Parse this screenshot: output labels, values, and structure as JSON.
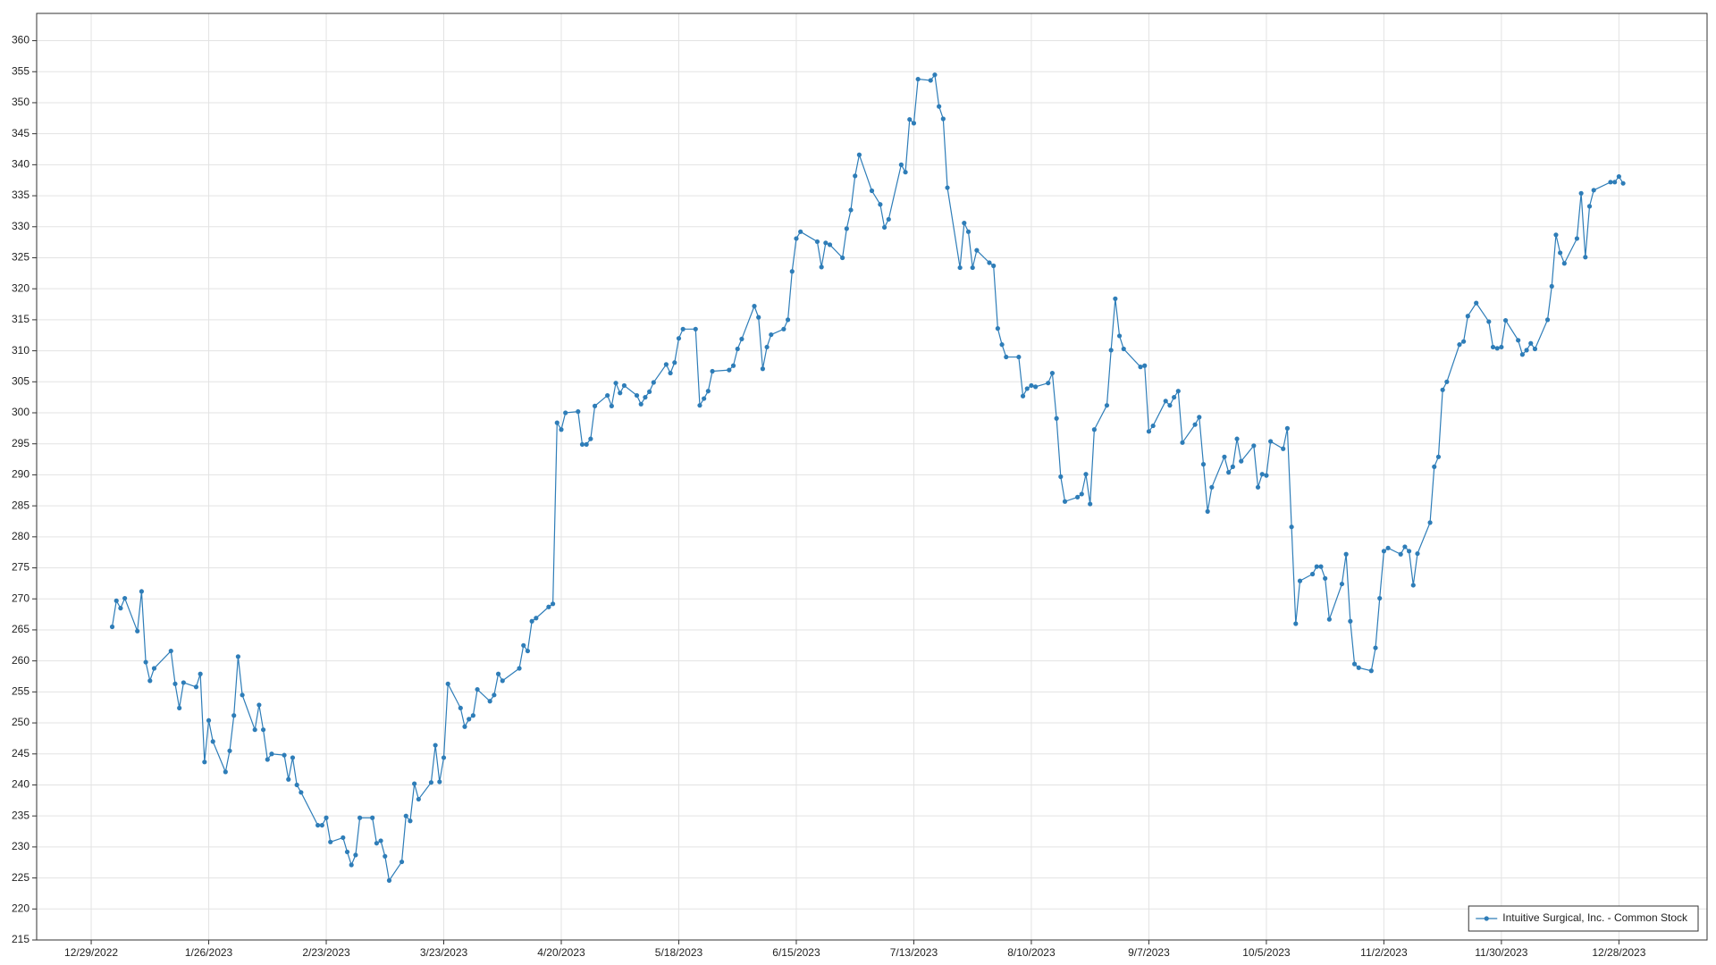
{
  "chart_data": {
    "type": "line",
    "xlim": [
      "12/16/2022",
      "1/18/2024"
    ],
    "xticks": [
      "12/29/2022",
      "1/26/2023",
      "2/23/2023",
      "3/23/2023",
      "4/20/2023",
      "5/18/2023",
      "6/15/2023",
      "7/13/2023",
      "8/10/2023",
      "9/7/2023",
      "10/5/2023",
      "11/2/2023",
      "11/30/2023",
      "12/28/2023"
    ],
    "ylim": [
      215,
      364.4
    ],
    "yticks": [
      215,
      220,
      225,
      230,
      235,
      240,
      245,
      250,
      255,
      260,
      265,
      270,
      275,
      280,
      285,
      290,
      295,
      300,
      305,
      310,
      315,
      320,
      325,
      330,
      335,
      340,
      345,
      350,
      355,
      360
    ],
    "grid": true,
    "legend": "lower right",
    "series": [
      {
        "name": "Intuitive Surgical, Inc. - Common Stock",
        "color": "#2e7db8",
        "x": [
          "1/3/2023",
          "1/4/2023",
          "1/5/2023",
          "1/6/2023",
          "1/9/2023",
          "1/10/2023",
          "1/11/2023",
          "1/12/2023",
          "1/13/2023",
          "1/17/2023",
          "1/18/2023",
          "1/19/2023",
          "1/20/2023",
          "1/23/2023",
          "1/24/2023",
          "1/25/2023",
          "1/26/2023",
          "1/27/2023",
          "1/30/2023",
          "1/31/2023",
          "2/1/2023",
          "2/2/2023",
          "2/3/2023",
          "2/6/2023",
          "2/7/2023",
          "2/8/2023",
          "2/9/2023",
          "2/10/2023",
          "2/13/2023",
          "2/14/2023",
          "2/15/2023",
          "2/16/2023",
          "2/17/2023",
          "2/21/2023",
          "2/22/2023",
          "2/23/2023",
          "2/24/2023",
          "2/27/2023",
          "2/28/2023",
          "3/1/2023",
          "3/2/2023",
          "3/3/2023",
          "3/6/2023",
          "3/7/2023",
          "3/8/2023",
          "3/9/2023",
          "3/10/2023",
          "3/13/2023",
          "3/14/2023",
          "3/15/2023",
          "3/16/2023",
          "3/17/2023",
          "3/20/2023",
          "3/21/2023",
          "3/22/2023",
          "3/23/2023",
          "3/24/2023",
          "3/27/2023",
          "3/28/2023",
          "3/29/2023",
          "3/30/2023",
          "3/31/2023",
          "4/3/2023",
          "4/4/2023",
          "4/5/2023",
          "4/6/2023",
          "4/10/2023",
          "4/11/2023",
          "4/12/2023",
          "4/13/2023",
          "4/14/2023",
          "4/17/2023",
          "4/18/2023",
          "4/19/2023",
          "4/20/2023",
          "4/21/2023",
          "4/24/2023",
          "4/25/2023",
          "4/26/2023",
          "4/27/2023",
          "4/28/2023",
          "5/1/2023",
          "5/2/2023",
          "5/3/2023",
          "5/4/2023",
          "5/5/2023",
          "5/8/2023",
          "5/9/2023",
          "5/10/2023",
          "5/11/2023",
          "5/12/2023",
          "5/15/2023",
          "5/16/2023",
          "5/17/2023",
          "5/18/2023",
          "5/19/2023",
          "5/22/2023",
          "5/23/2023",
          "5/24/2023",
          "5/25/2023",
          "5/26/2023",
          "5/30/2023",
          "5/31/2023",
          "6/1/2023",
          "6/2/2023",
          "6/5/2023",
          "6/6/2023",
          "6/7/2023",
          "6/8/2023",
          "6/9/2023",
          "6/12/2023",
          "6/13/2023",
          "6/14/2023",
          "6/15/2023",
          "6/16/2023",
          "6/20/2023",
          "6/21/2023",
          "6/22/2023",
          "6/23/2023",
          "6/26/2023",
          "6/27/2023",
          "6/28/2023",
          "6/29/2023",
          "6/30/2023",
          "7/3/2023",
          "7/5/2023",
          "7/6/2023",
          "7/7/2023",
          "7/10/2023",
          "7/11/2023",
          "7/12/2023",
          "7/13/2023",
          "7/14/2023",
          "7/17/2023",
          "7/18/2023",
          "7/19/2023",
          "7/20/2023",
          "7/21/2023",
          "7/24/2023",
          "7/25/2023",
          "7/26/2023",
          "7/27/2023",
          "7/28/2023",
          "7/31/2023",
          "8/1/2023",
          "8/2/2023",
          "8/3/2023",
          "8/4/2023",
          "8/7/2023",
          "8/8/2023",
          "8/9/2023",
          "8/10/2023",
          "8/11/2023",
          "8/14/2023",
          "8/15/2023",
          "8/16/2023",
          "8/17/2023",
          "8/18/2023",
          "8/21/2023",
          "8/22/2023",
          "8/23/2023",
          "8/24/2023",
          "8/25/2023",
          "8/28/2023",
          "8/29/2023",
          "8/30/2023",
          "8/31/2023",
          "9/1/2023",
          "9/5/2023",
          "9/6/2023",
          "9/7/2023",
          "9/8/2023",
          "9/11/2023",
          "9/12/2023",
          "9/13/2023",
          "9/14/2023",
          "9/15/2023",
          "9/18/2023",
          "9/19/2023",
          "9/20/2023",
          "9/21/2023",
          "9/22/2023",
          "9/25/2023",
          "9/26/2023",
          "9/27/2023",
          "9/28/2023",
          "9/29/2023",
          "10/2/2023",
          "10/3/2023",
          "10/4/2023",
          "10/5/2023",
          "10/6/2023",
          "10/9/2023",
          "10/10/2023",
          "10/11/2023",
          "10/12/2023",
          "10/13/2023",
          "10/16/2023",
          "10/17/2023",
          "10/18/2023",
          "10/19/2023",
          "10/20/2023",
          "10/23/2023",
          "10/24/2023",
          "10/25/2023",
          "10/26/2023",
          "10/27/2023",
          "10/30/2023",
          "10/31/2023",
          "11/1/2023",
          "11/2/2023",
          "11/3/2023",
          "11/6/2023",
          "11/7/2023",
          "11/8/2023",
          "11/9/2023",
          "11/10/2023",
          "11/13/2023",
          "11/14/2023",
          "11/15/2023",
          "11/16/2023",
          "11/17/2023",
          "11/20/2023",
          "11/21/2023",
          "11/22/2023",
          "11/24/2023",
          "11/27/2023",
          "11/28/2023",
          "11/29/2023",
          "11/30/2023",
          "12/1/2023",
          "12/4/2023",
          "12/5/2023",
          "12/6/2023",
          "12/7/2023",
          "12/8/2023",
          "12/11/2023",
          "12/12/2023",
          "12/13/2023",
          "12/14/2023",
          "12/15/2023",
          "12/18/2023",
          "12/19/2023",
          "12/20/2023",
          "12/21/2023",
          "12/22/2023",
          "12/26/2023",
          "12/27/2023",
          "12/28/2023",
          "12/29/2023"
        ],
        "values": [
          265.5,
          269.7,
          268.5,
          270.1,
          264.8,
          271.2,
          259.8,
          256.8,
          258.8,
          261.6,
          256.3,
          252.4,
          256.5,
          255.8,
          257.9,
          243.7,
          250.4,
          247.0,
          242.1,
          245.5,
          251.2,
          260.7,
          254.5,
          248.9,
          252.9,
          248.9,
          244.1,
          245.0,
          244.8,
          240.9,
          244.4,
          240.0,
          238.8,
          233.5,
          233.5,
          234.7,
          230.8,
          231.5,
          229.2,
          227.1,
          228.7,
          234.7,
          234.7,
          230.6,
          231.0,
          228.5,
          224.6,
          227.6,
          235.0,
          234.2,
          240.2,
          237.7,
          240.4,
          246.4,
          240.5,
          244.4,
          256.3,
          252.4,
          249.4,
          250.6,
          251.2,
          255.4,
          253.5,
          254.5,
          257.9,
          256.8,
          258.8,
          262.5,
          261.6,
          266.4,
          266.9,
          268.7,
          269.2,
          298.4,
          297.3,
          300.0,
          300.2,
          294.9,
          294.9,
          295.8,
          301.1,
          302.8,
          301.1,
          304.8,
          303.2,
          304.4,
          302.8,
          301.4,
          302.5,
          303.4,
          304.9,
          307.8,
          306.4,
          308.1,
          312.0,
          313.5,
          313.5,
          301.2,
          302.3,
          303.5,
          306.7,
          306.9,
          307.6,
          310.3,
          311.9,
          317.2,
          315.4,
          307.1,
          310.6,
          312.6,
          313.5,
          315.0,
          322.8,
          328.1,
          329.2,
          327.6,
          323.5,
          327.4,
          327.1,
          325.0,
          329.7,
          332.7,
          338.2,
          341.6,
          335.8,
          333.6,
          329.9,
          331.2,
          340.0,
          338.8,
          347.3,
          346.7,
          353.8,
          353.6,
          354.5,
          349.4,
          347.4,
          336.3,
          323.4,
          330.6,
          329.2,
          323.4,
          326.2,
          324.2,
          323.7,
          313.6,
          311.0,
          309.0,
          309.0,
          302.7,
          303.9,
          304.4,
          304.2,
          304.8,
          306.4,
          299.1,
          289.7,
          285.7,
          286.4,
          286.9,
          290.1,
          285.3,
          297.3,
          301.2,
          310.1,
          318.4,
          312.4,
          310.3,
          307.4,
          307.6,
          297.0,
          297.9,
          301.9,
          301.2,
          302.5,
          303.5,
          295.2,
          298.1,
          299.3,
          291.7,
          284.1,
          288.0,
          292.9,
          290.4,
          291.3,
          295.8,
          292.2,
          294.7,
          288.0,
          290.1,
          289.9,
          295.4,
          294.2,
          297.5,
          281.6,
          266.0,
          272.9,
          274.0,
          275.2,
          275.2,
          273.3,
          266.7,
          272.4,
          277.2,
          266.4,
          259.5,
          258.9,
          258.4,
          262.1,
          270.1,
          277.7,
          278.2,
          277.2,
          278.4,
          277.7,
          272.2,
          277.3,
          282.3,
          291.3,
          292.9,
          303.7,
          305.0,
          311.0,
          311.5,
          315.6,
          317.7,
          314.7,
          310.6,
          310.4,
          310.6,
          314.9,
          311.7,
          309.4,
          310.1,
          311.2,
          310.3,
          315.0,
          320.4,
          328.7,
          325.8,
          324.1,
          328.1,
          335.4,
          325.1,
          333.3,
          335.9,
          337.2,
          337.2,
          338.1,
          337.0
        ]
      }
    ]
  }
}
